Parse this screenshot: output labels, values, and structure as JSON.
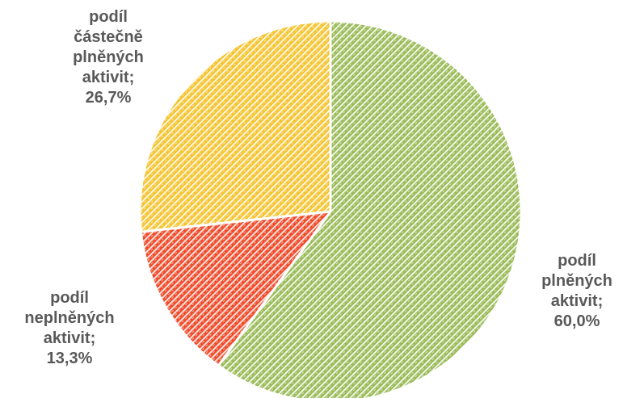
{
  "chart_data": {
    "type": "pie",
    "start_angle_deg": 0,
    "direction": "clockwise",
    "slices": [
      {
        "value": 60.0,
        "color": "#9bbb59",
        "label_lines": [
          "podíl",
          "plněných",
          "aktivit;",
          "60,0%"
        ]
      },
      {
        "value": 13.3,
        "color": "#f04b2a",
        "label_lines": [
          "podíl",
          "neplněných",
          "aktivit;",
          "13,3%"
        ]
      },
      {
        "value": 26.7,
        "color": "#f5c430",
        "label_lines": [
          "podíl",
          "částečně",
          "plněných",
          "aktivit;",
          "26,7%"
        ]
      }
    ],
    "legend": "none",
    "pattern": "diagonal-hatch"
  }
}
